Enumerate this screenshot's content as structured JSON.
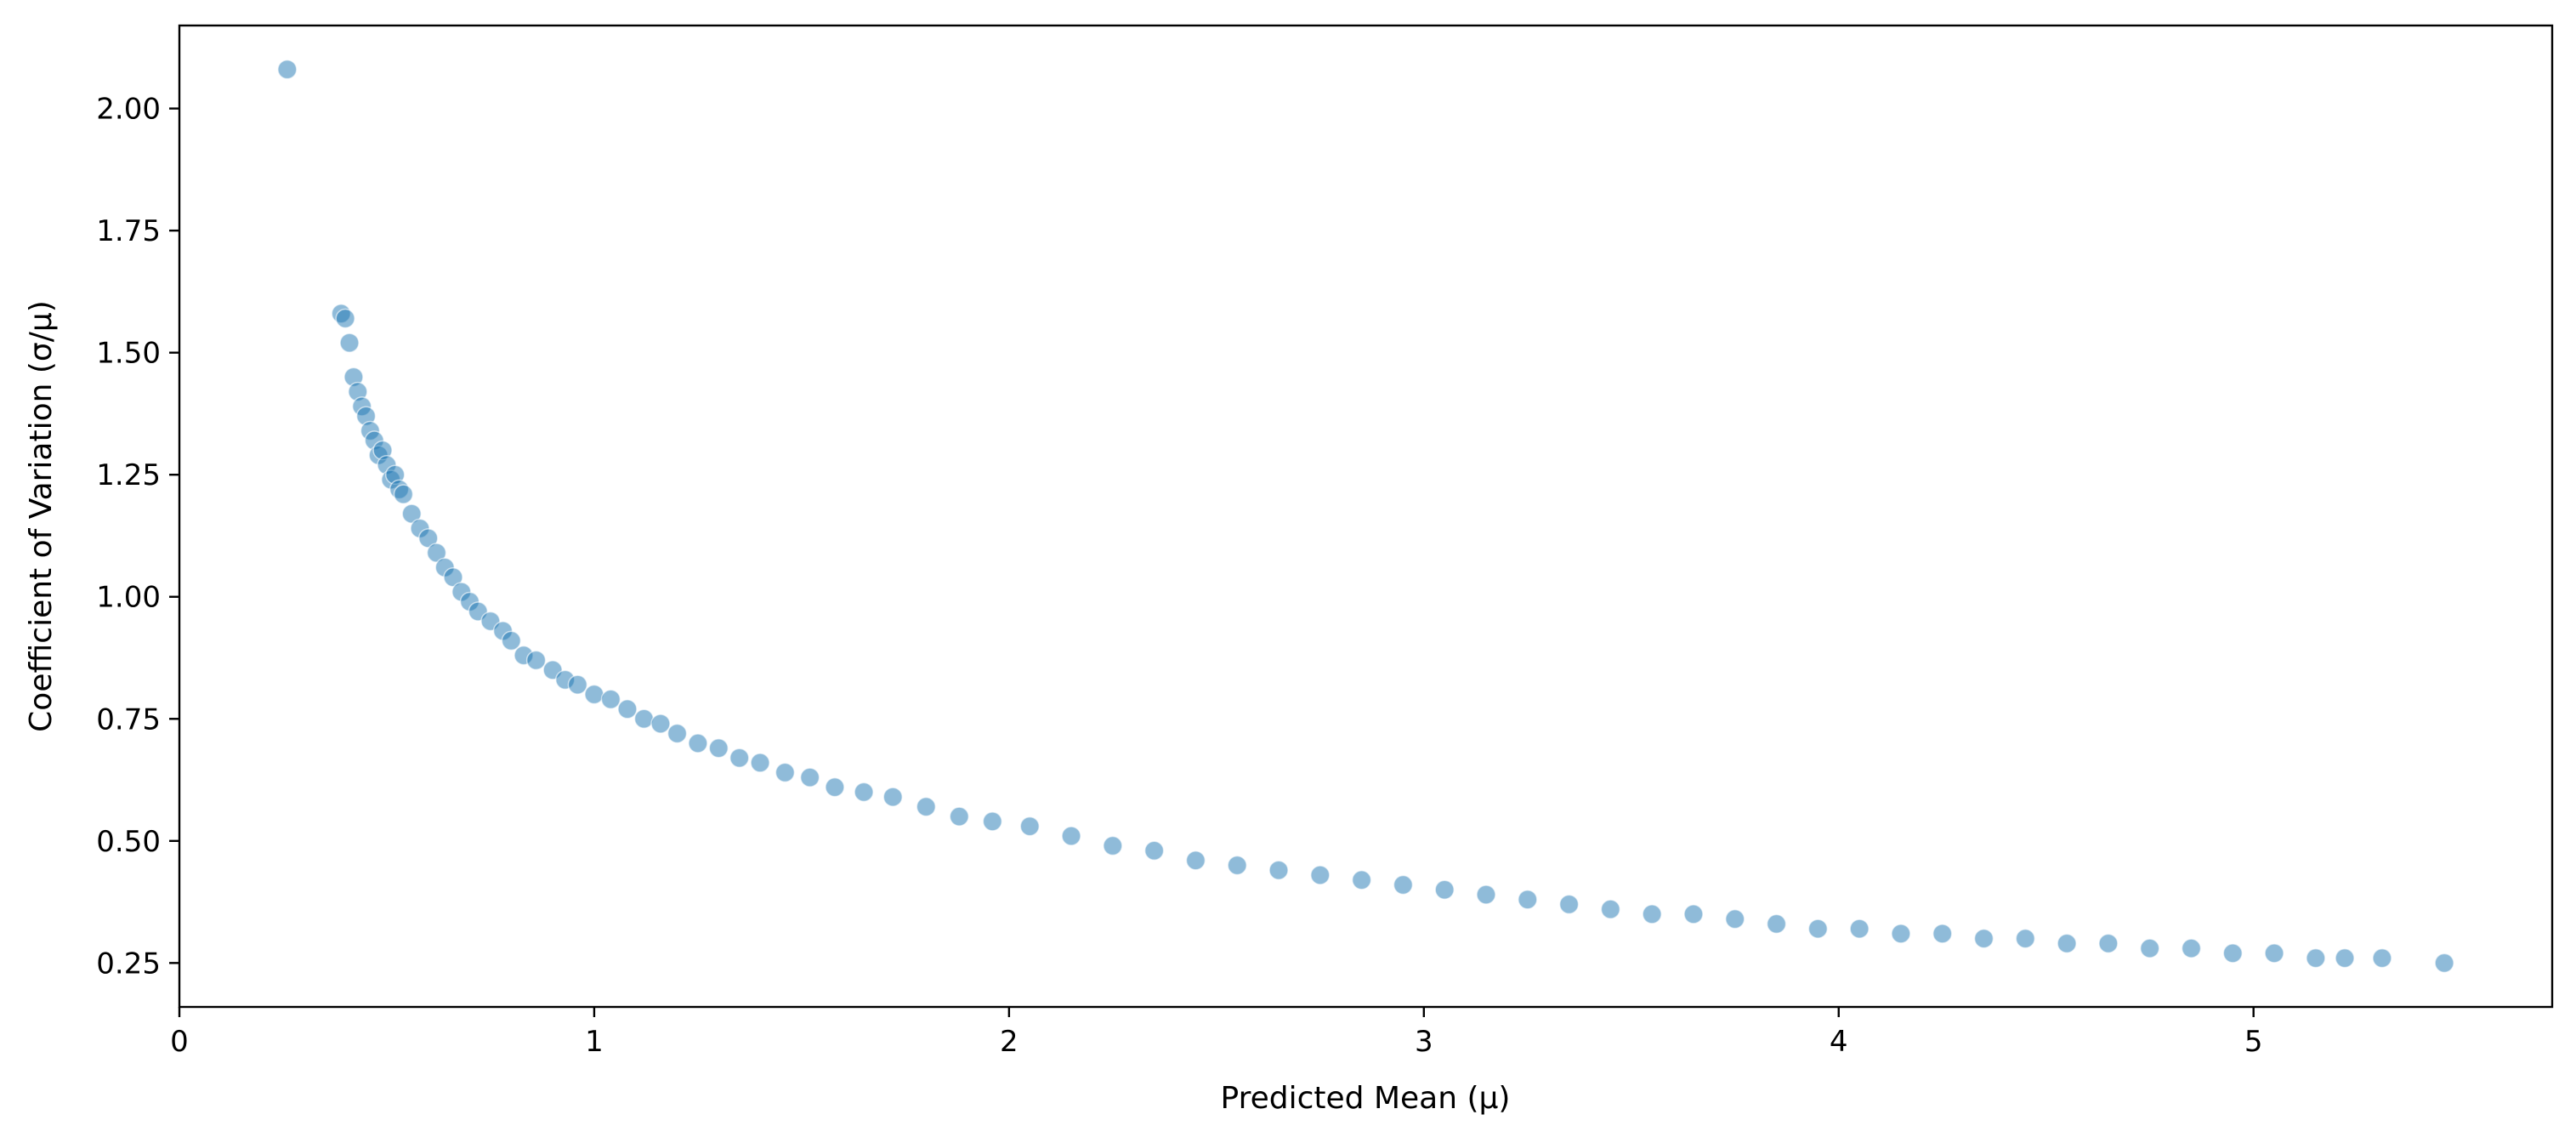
{
  "chart_data": {
    "type": "scatter",
    "title": "",
    "xlabel": "Predicted Mean (μ)",
    "ylabel": "Coefficient of Variation (σ/μ)",
    "xlim": [
      0,
      5.72
    ],
    "ylim": [
      0.16,
      2.17
    ],
    "xticks": [
      0,
      1,
      2,
      3,
      4,
      5
    ],
    "xtick_labels": [
      "0",
      "1",
      "2",
      "3",
      "4",
      "5"
    ],
    "yticks": [
      0.25,
      0.5,
      0.75,
      1.0,
      1.25,
      1.5,
      1.75,
      2.0
    ],
    "ytick_labels": [
      "0.25",
      "0.50",
      "0.75",
      "1.00",
      "1.25",
      "1.50",
      "1.75",
      "2.00"
    ],
    "grid": false,
    "legend": "none",
    "marker_color": "#1f77b4",
    "marker_alpha": 0.5,
    "series": [
      {
        "x": [
          0.26,
          0.39,
          0.4,
          0.41,
          0.42,
          0.43,
          0.44,
          0.45,
          0.46,
          0.47,
          0.48,
          0.49,
          0.5,
          0.51,
          0.52,
          0.53,
          0.54,
          0.56,
          0.58,
          0.6,
          0.62,
          0.64,
          0.66,
          0.68,
          0.7,
          0.72,
          0.75,
          0.78,
          0.8,
          0.83,
          0.86,
          0.9,
          0.93,
          0.96,
          1.0,
          1.04,
          1.08,
          1.12,
          1.16,
          1.2,
          1.25,
          1.3,
          1.35,
          1.4,
          1.46,
          1.52,
          1.58,
          1.65,
          1.72,
          1.8,
          1.88,
          1.96,
          2.05,
          2.15,
          2.25,
          2.35,
          2.45,
          2.55,
          2.65,
          2.75,
          2.85,
          2.95,
          3.05,
          3.15,
          3.25,
          3.35,
          3.45,
          3.55,
          3.65,
          3.75,
          3.85,
          3.95,
          4.05,
          4.15,
          4.25,
          4.35,
          4.45,
          4.55,
          4.65,
          4.75,
          4.85,
          4.95,
          5.05,
          5.15,
          5.22,
          5.31,
          5.46
        ],
        "y": [
          2.08,
          1.58,
          1.57,
          1.52,
          1.45,
          1.42,
          1.39,
          1.37,
          1.34,
          1.32,
          1.29,
          1.3,
          1.27,
          1.24,
          1.25,
          1.22,
          1.21,
          1.17,
          1.14,
          1.12,
          1.09,
          1.06,
          1.04,
          1.01,
          0.99,
          0.97,
          0.95,
          0.93,
          0.91,
          0.88,
          0.87,
          0.85,
          0.83,
          0.82,
          0.8,
          0.79,
          0.77,
          0.75,
          0.74,
          0.72,
          0.7,
          0.69,
          0.67,
          0.66,
          0.64,
          0.63,
          0.61,
          0.6,
          0.59,
          0.57,
          0.55,
          0.54,
          0.53,
          0.51,
          0.49,
          0.48,
          0.46,
          0.45,
          0.44,
          0.43,
          0.42,
          0.41,
          0.4,
          0.39,
          0.38,
          0.37,
          0.36,
          0.35,
          0.35,
          0.34,
          0.33,
          0.32,
          0.32,
          0.31,
          0.31,
          0.3,
          0.3,
          0.29,
          0.29,
          0.28,
          0.28,
          0.27,
          0.27,
          0.26,
          0.26,
          0.26,
          0.25
        ]
      }
    ]
  }
}
